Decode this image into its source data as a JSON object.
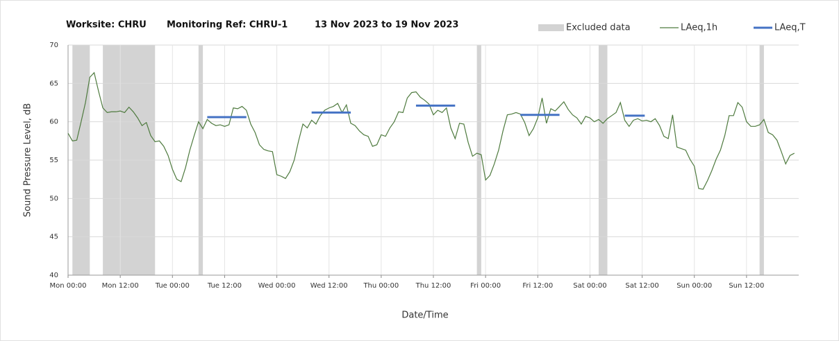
{
  "chart_data": {
    "type": "line",
    "title": [
      "Worksite: CHRU",
      "Monitoring Ref: CHRU-1",
      "13 Nov 2023 to 19 Nov 2023"
    ],
    "xlabel": "Date/Time",
    "ylabel": "Sound Pressure Level, dB",
    "xlim": [
      0,
      168
    ],
    "ylim": [
      40,
      70
    ],
    "yticks": [
      40,
      45,
      50,
      55,
      60,
      65,
      70
    ],
    "xticks": [
      {
        "value": 0,
        "label": "Mon 00:00"
      },
      {
        "value": 12,
        "label": "Mon 12:00"
      },
      {
        "value": 24,
        "label": "Tue 00:00"
      },
      {
        "value": 36,
        "label": "Tue 12:00"
      },
      {
        "value": 48,
        "label": "Wed 00:00"
      },
      {
        "value": 60,
        "label": "Wed 12:00"
      },
      {
        "value": 72,
        "label": "Thu 00:00"
      },
      {
        "value": 84,
        "label": "Thu 12:00"
      },
      {
        "value": 96,
        "label": "Fri 00:00"
      },
      {
        "value": 108,
        "label": "Fri 12:00"
      },
      {
        "value": 120,
        "label": "Sat 00:00"
      },
      {
        "value": 132,
        "label": "Sat 12:00"
      },
      {
        "value": 144,
        "label": "Sun 00:00"
      },
      {
        "value": 156,
        "label": "Sun 12:00"
      }
    ],
    "grid": true,
    "series": [
      {
        "name": "Excluded data",
        "type": "band",
        "color": "#d3d3d3",
        "x_start": [
          1,
          8,
          30,
          94,
          122,
          159
        ],
        "x_end": [
          5,
          20,
          31,
          95,
          124,
          160
        ]
      },
      {
        "name": "LAeq,1h",
        "type": "line",
        "color": "#4e7a3e",
        "x": [
          0,
          1,
          2,
          3,
          4,
          5,
          6,
          7,
          8,
          9,
          10,
          11,
          12,
          13,
          14,
          15,
          16,
          17,
          18,
          19,
          20,
          21,
          22,
          23,
          24,
          25,
          26,
          27,
          28,
          29,
          30,
          31,
          32,
          33,
          34,
          35,
          36,
          37,
          38,
          39,
          40,
          41,
          42,
          43,
          44,
          45,
          46,
          47,
          48,
          49,
          50,
          51,
          52,
          53,
          54,
          55,
          56,
          57,
          58,
          59,
          60,
          61,
          62,
          63,
          64,
          65,
          66,
          67,
          68,
          69,
          70,
          71,
          72,
          73,
          74,
          75,
          76,
          77,
          78,
          79,
          80,
          81,
          82,
          83,
          84,
          85,
          86,
          87,
          88,
          89,
          90,
          91,
          92,
          93,
          94,
          95,
          96,
          97,
          98,
          99,
          100,
          101,
          102,
          103,
          104,
          105,
          106,
          107,
          108,
          109,
          110,
          111,
          112,
          113,
          114,
          115,
          116,
          117,
          118,
          119,
          120,
          121,
          122,
          123,
          124,
          125,
          126,
          127,
          128,
          129,
          130,
          131,
          132,
          133,
          134,
          135,
          136,
          137,
          138,
          139,
          140,
          141,
          142,
          143,
          144,
          145,
          146,
          147,
          148,
          149,
          150,
          151,
          152,
          153,
          154,
          155,
          156,
          157,
          158,
          159,
          160,
          161,
          162,
          163,
          164,
          165,
          166,
          167
        ],
        "values": [
          58.5,
          57.5,
          57.6,
          60,
          62.5,
          65.8,
          66.4,
          64,
          61.8,
          61.2,
          61.3,
          61.3,
          61.4,
          61.2,
          61.9,
          61.3,
          60.5,
          59.5,
          59.9,
          58.2,
          57.4,
          57.5,
          56.8,
          55.6,
          53.8,
          52.5,
          52.2,
          54,
          56.3,
          58.2,
          60,
          59.1,
          60.3,
          59.8,
          59.5,
          59.6,
          59.4,
          59.6,
          61.8,
          61.7,
          62,
          61.5,
          59.7,
          58.6,
          57,
          56.4,
          56.2,
          56.1,
          53.1,
          52.9,
          52.6,
          53.5,
          55,
          57.5,
          59.7,
          59.2,
          60.2,
          59.7,
          60.8,
          61.5,
          61.8,
          62,
          62.4,
          61.2,
          62.2,
          59.8,
          59.5,
          58.8,
          58.3,
          58.1,
          56.8,
          57,
          58.3,
          58.1,
          59.2,
          60,
          61.3,
          61.2,
          63.1,
          63.8,
          63.9,
          63.2,
          62.8,
          62.3,
          60.9,
          61.5,
          61.2,
          61.8,
          59.2,
          57.8,
          59.8,
          59.7,
          57.3,
          55.5,
          55.9,
          55.7,
          52.4,
          53,
          54.5,
          56.3,
          58.8,
          60.9,
          61,
          61.2,
          61,
          59.9,
          58.2,
          59.1,
          60.5,
          63.1,
          59.8,
          61.7,
          61.4,
          62,
          62.6,
          61.6,
          60.9,
          60.5,
          59.7,
          60.7,
          60.5,
          60,
          60.3,
          59.8,
          60.4,
          60.8,
          61.2,
          62.5,
          60.2,
          59.4,
          60.2,
          60.4,
          60.1,
          60.2,
          60,
          60.4,
          59.5,
          58.1,
          57.8,
          60.9,
          56.7,
          56.5,
          56.3,
          55.1,
          54.2,
          51.3,
          51.2,
          52.3,
          53.6,
          55.1,
          56.3,
          58.2,
          60.8,
          60.8,
          62.5,
          61.9,
          60,
          59.4,
          59.4,
          59.6,
          60.3,
          58.6,
          58.3,
          57.6,
          56.1,
          54.5,
          55.6,
          55.9
        ]
      },
      {
        "name": "LAeq,T",
        "type": "segments",
        "color": "#4472c4",
        "x_start": [
          32,
          56,
          80,
          104,
          128
        ],
        "x_end": [
          41,
          65,
          89,
          113,
          132.6
        ],
        "values": [
          60.6,
          61.2,
          62.1,
          60.9,
          60.8
        ]
      }
    ],
    "legend": "top-right"
  }
}
